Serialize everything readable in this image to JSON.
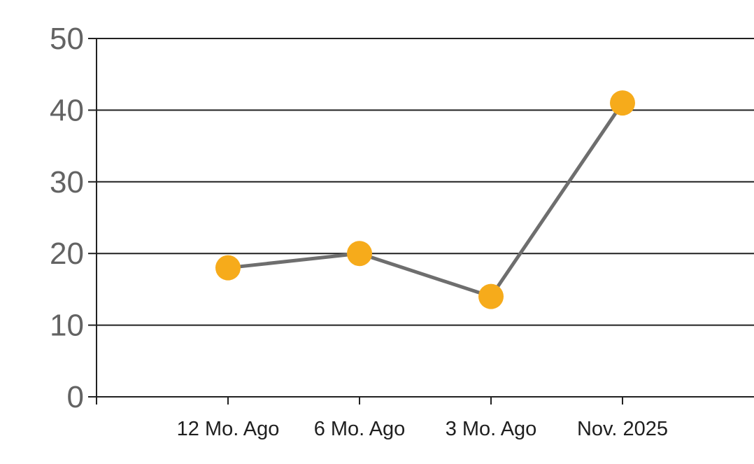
{
  "chart_data": {
    "type": "line",
    "categories": [
      "12 Mo. Ago",
      "6 Mo. Ago",
      "3 Mo. Ago",
      "Nov. 2025"
    ],
    "values": [
      18,
      20,
      14,
      41
    ],
    "title": "",
    "xlabel": "",
    "ylabel": "",
    "ylim": [
      0,
      50
    ],
    "yticks": [
      0,
      10,
      20,
      30,
      40,
      50
    ],
    "grid": "horizontal",
    "legend": "none",
    "colors": {
      "marker": "#F6AB1B",
      "line": "#6E6E6E",
      "grid_axis": "#212121",
      "y_tick_label": "#636363",
      "x_tick_label": "#1F1F1F",
      "background": "#FFFFFF"
    }
  }
}
